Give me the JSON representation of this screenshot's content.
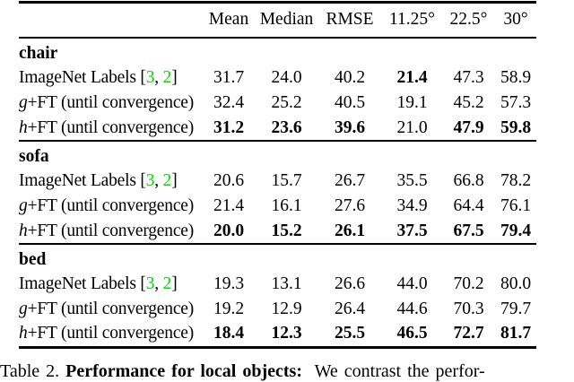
{
  "colors": {
    "citation_green": "#00dd00",
    "rule_color": "#000000"
  },
  "table": {
    "headers": [
      "",
      "Mean",
      "Median",
      "RMSE",
      "11.25°",
      "22.5°",
      "30°"
    ],
    "sections": [
      {
        "name": "chair",
        "rows": [
          {
            "label": {
              "type": "cite",
              "text": "ImageNet Labels ",
              "open": "[",
              "cite1": "3",
              "sep": ", ",
              "cite2": "2",
              "close": "]"
            },
            "values": [
              "31.7",
              "24.0",
              "40.2",
              "21.4",
              "47.3",
              "58.9"
            ],
            "bold": [
              false,
              false,
              false,
              true,
              false,
              false
            ]
          },
          {
            "label": {
              "type": "math",
              "it": "g",
              "rest": "+FT (until convergence)"
            },
            "values": [
              "32.4",
              "25.2",
              "40.5",
              "19.1",
              "45.2",
              "57.3"
            ],
            "bold": [
              false,
              false,
              false,
              false,
              false,
              false
            ]
          },
          {
            "label": {
              "type": "math",
              "it": "h",
              "rest": "+FT (until convergence)"
            },
            "values": [
              "31.2",
              "23.6",
              "39.6",
              "21.0",
              "47.9",
              "59.8"
            ],
            "bold": [
              true,
              true,
              true,
              false,
              true,
              true
            ]
          }
        ]
      },
      {
        "name": "sofa",
        "rows": [
          {
            "label": {
              "type": "cite",
              "text": "ImageNet Labels ",
              "open": "[",
              "cite1": "3",
              "sep": ", ",
              "cite2": "2",
              "close": "]"
            },
            "values": [
              "20.6",
              "15.7",
              "26.7",
              "35.5",
              "66.8",
              "78.2"
            ],
            "bold": [
              false,
              false,
              false,
              false,
              false,
              false
            ]
          },
          {
            "label": {
              "type": "math",
              "it": "g",
              "rest": "+FT (until convergence)"
            },
            "values": [
              "21.4",
              "16.1",
              "27.6",
              "34.9",
              "64.4",
              "76.1"
            ],
            "bold": [
              false,
              false,
              false,
              false,
              false,
              false
            ]
          },
          {
            "label": {
              "type": "math",
              "it": "h",
              "rest": "+FT (until convergence)"
            },
            "values": [
              "20.0",
              "15.2",
              "26.1",
              "37.5",
              "67.5",
              "79.4"
            ],
            "bold": [
              true,
              true,
              true,
              true,
              true,
              true
            ]
          }
        ]
      },
      {
        "name": "bed",
        "rows": [
          {
            "label": {
              "type": "cite",
              "text": "ImageNet Labels ",
              "open": "[",
              "cite1": "3",
              "sep": ", ",
              "cite2": "2",
              "close": "]"
            },
            "values": [
              "19.3",
              "13.1",
              "26.6",
              "44.0",
              "70.2",
              "80.0"
            ],
            "bold": [
              false,
              false,
              false,
              false,
              false,
              false
            ]
          },
          {
            "label": {
              "type": "math",
              "it": "g",
              "rest": "+FT (until convergence)"
            },
            "values": [
              "19.2",
              "12.9",
              "26.4",
              "44.6",
              "70.3",
              "79.7"
            ],
            "bold": [
              false,
              false,
              false,
              false,
              false,
              false
            ]
          },
          {
            "label": {
              "type": "math",
              "it": "h",
              "rest": "+FT (until convergence)"
            },
            "values": [
              "18.4",
              "12.3",
              "25.5",
              "46.5",
              "72.7",
              "81.7"
            ],
            "bold": [
              true,
              true,
              true,
              true,
              true,
              true
            ]
          }
        ]
      }
    ]
  },
  "caption": {
    "label": "Table 2. ",
    "bold": "Performance for local objects:",
    "rest": "  We contrast the perfor-"
  }
}
